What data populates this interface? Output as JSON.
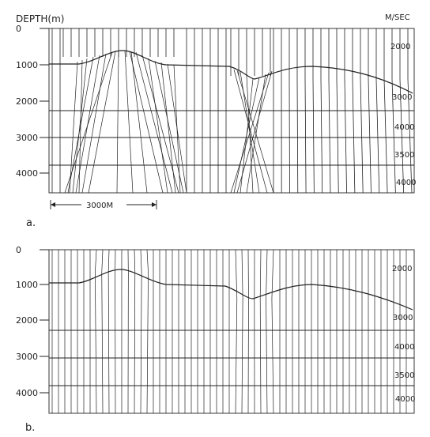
{
  "header": {
    "depth_label": "DEPTH(m)",
    "velocity_unit": "M/SEC"
  },
  "panels": [
    {
      "id": "a",
      "label": "a.",
      "depth_ticks": [
        "0",
        "1000",
        "2000",
        "3000",
        "4000"
      ],
      "velocities": [
        "2000",
        "3000",
        "4000",
        "3500",
        "4000"
      ],
      "scale_bar": "3000M",
      "mode": "rays"
    },
    {
      "id": "b",
      "label": "b.",
      "depth_ticks": [
        "0",
        "1000",
        "2000",
        "3000",
        "4000"
      ],
      "velocities": [
        "2000",
        "3000",
        "4000",
        "3500",
        "4000"
      ],
      "mode": "image"
    }
  ],
  "colors": {
    "ink": "#222222",
    "paper": "#ffffff"
  }
}
